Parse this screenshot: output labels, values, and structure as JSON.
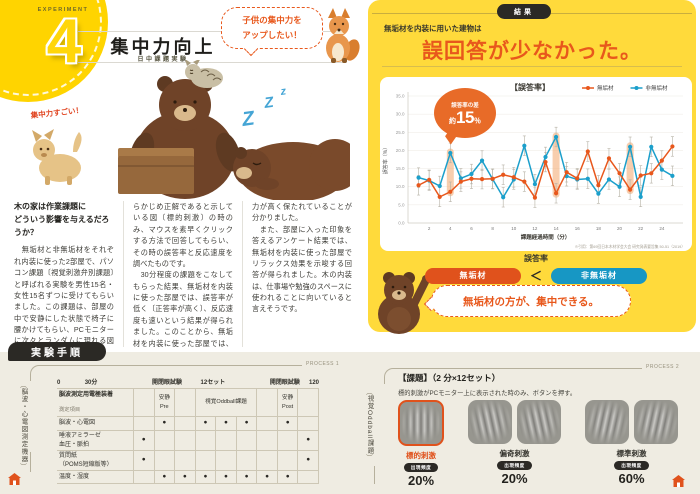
{
  "palette": {
    "orange": "#E8581C",
    "blue": "#1B9FCB",
    "panel_yellow": "#FFDA3B",
    "circle_yellow": "#FFD400",
    "dark": "#2B2925",
    "beige": "#EFECE2"
  },
  "left_page": {
    "experiment_label": "EXPERIMENT",
    "experiment_number": "4",
    "title": "集中力向上",
    "subtitle": "日中課題実験",
    "speech_bubble": "子供の集中力を\nアップしたい！",
    "illustration_caption": "集中力すごい！",
    "sleep_z": [
      "Z",
      "Z",
      "z"
    ],
    "columns": [
      {
        "heading": "木の家は作業課題に\nどういう影響を与えるだろうか？",
        "paragraphs": [
          "　無垢材と非無垢材をそれぞれ内装に使った2部屋で、パソコン課題〔視覚刺激弁別課題〕と呼ばれる実験を男性15名・女性15名ずつに受けてもらいました。この課題は、部屋の中で安静にした状態で椅子に腰かけてもらい、PCモニターに次々とランダムに現れる図（標的刺激・偏奇刺激・標準刺激）を見て、あ"
        ]
      },
      {
        "paragraphs": [
          "らかじめ正解であると示している図〔標的刺激〕の時のみ、マウスを素早くクリックする方法で回答してもらい、その時の誤答率と反応速度を調べたものです。",
          "　30分程度の課題をこなしてもらった結果、無垢材を内装に使った部屋では、誤答率が低く〔正答率が高く〕、反応速度も速いという結果が得られました。このことから、無垢材を内装に使った部屋では、集中"
        ]
      },
      {
        "paragraphs": [
          "力が高く保たれていることが分かりました。",
          "　また、部屋に入った印象を答えるアンケート結果では、無垢材を内装に使った部屋でリラックス効果を示唆する回答が得られました。木の内装は、仕事場や勉強のスペースに使われることに向いていると言えそうです。"
        ]
      }
    ]
  },
  "right_page": {
    "tab": "結果",
    "lead": "無垢材を内装に用いた建物は",
    "statement": "誤回答が少なかった。",
    "comparison": {
      "label": "誤答率",
      "left": "無垢材",
      "operator": "＜",
      "right": "非無垢材"
    },
    "bubble": "無垢材の方が、集中できる。"
  },
  "chart_data": {
    "type": "line",
    "title": "【誤答率】",
    "xlabel": "課題経過時間（分）",
    "ylabel": "誤答率（%）",
    "xlim": [
      0,
      26
    ],
    "ylim": [
      0,
      35
    ],
    "xticks": [
      2,
      4,
      6,
      8,
      10,
      12,
      14,
      16,
      18,
      20,
      22,
      24
    ],
    "yticks": [
      0,
      5,
      10,
      15,
      20,
      25,
      30,
      35
    ],
    "grid": true,
    "legend_position": "top-right",
    "x": [
      1,
      2,
      3,
      4,
      5,
      6,
      7,
      8,
      9,
      10,
      11,
      12,
      13,
      14,
      15,
      16,
      17,
      18,
      19,
      20,
      21,
      22,
      23,
      24,
      25
    ],
    "series": [
      {
        "name": "無垢材",
        "color": "#E8571C",
        "values": [
          10.4,
          11.9,
          7.2,
          8.6,
          11.4,
          12.2,
          12.1,
          12.2,
          13.3,
          12.6,
          11.4,
          7.0,
          16.8,
          8.2,
          14.0,
          12.3,
          19.7,
          10.4,
          17.8,
          13.7,
          9.2,
          13.1,
          13.7,
          17.2,
          21.1
        ]
      },
      {
        "name": "非無垢材",
        "color": "#1B9FCB",
        "values": [
          12.5,
          11.7,
          10.2,
          19.3,
          12.3,
          13.5,
          17.2,
          12.1,
          7.1,
          12.0,
          21.3,
          10.7,
          18.2,
          23.7,
          12.9,
          12.0,
          12.2,
          8.1,
          12.0,
          10.0,
          21.0,
          7.2,
          21.0,
          14.7,
          13.0
        ]
      }
    ],
    "error_bar_half_width": 2.7,
    "highlight_x": [
      4,
      14,
      21
    ],
    "highlight_color": "#F2A66C",
    "callout": {
      "label": "誤答率の差",
      "prefix": "約",
      "value": "15",
      "unit": "％"
    },
    "source": "※引用：第69回日本木材学会大会 研究発表要旨集 50-51（2019）"
  },
  "procedure": {
    "tab": "実験手順",
    "process1": "PROCESS 1",
    "process2": "PROCESS 2",
    "left": {
      "device_label": "脳波・心電図測定機器",
      "timeline": [
        "0",
        "30分",
        "開閉眼試験",
        "12セット",
        "開閉眼試験",
        "120"
      ],
      "header_label": "脳波測定用電極装着",
      "row_axis_label": "測定項目",
      "phases": [
        {
          "col": 2,
          "span": 1,
          "label": "安静\nPre"
        },
        {
          "col": 4,
          "span": 3,
          "label": "視覚Oddball課題"
        },
        {
          "col": 8,
          "span": 1,
          "label": "安静\nPost"
        }
      ],
      "rows": [
        {
          "label": "脳波・心電図",
          "dots": [
            2,
            4,
            5,
            6,
            8
          ]
        },
        {
          "label": "唾液アミラーゼ\n血圧・脈拍",
          "dots": [
            1,
            9
          ]
        },
        {
          "label": "質問紙\n（POMS短縮版等）",
          "dots": [
            1,
            9
          ]
        },
        {
          "label": "温度・湿度",
          "dots": [
            2,
            3,
            4,
            5,
            6,
            7,
            8
          ]
        }
      ]
    },
    "right": {
      "bracket_label": "視覚Oddball課題",
      "heading": "【課題】（2 分×12セット）",
      "note": "標的刺激がPCモニター上に表示された時のみ、ボタンを押す。",
      "frequency_label": "出現頻度",
      "stimuli": [
        {
          "name": "標的刺激",
          "patches": 1,
          "frequency": "20%",
          "highlighted": true
        },
        {
          "name": "偏奇刺激",
          "patches": 2,
          "frequency": "20%",
          "highlighted": false
        },
        {
          "name": "標準刺激",
          "patches": 2,
          "frequency": "60%",
          "highlighted": false
        }
      ]
    }
  }
}
